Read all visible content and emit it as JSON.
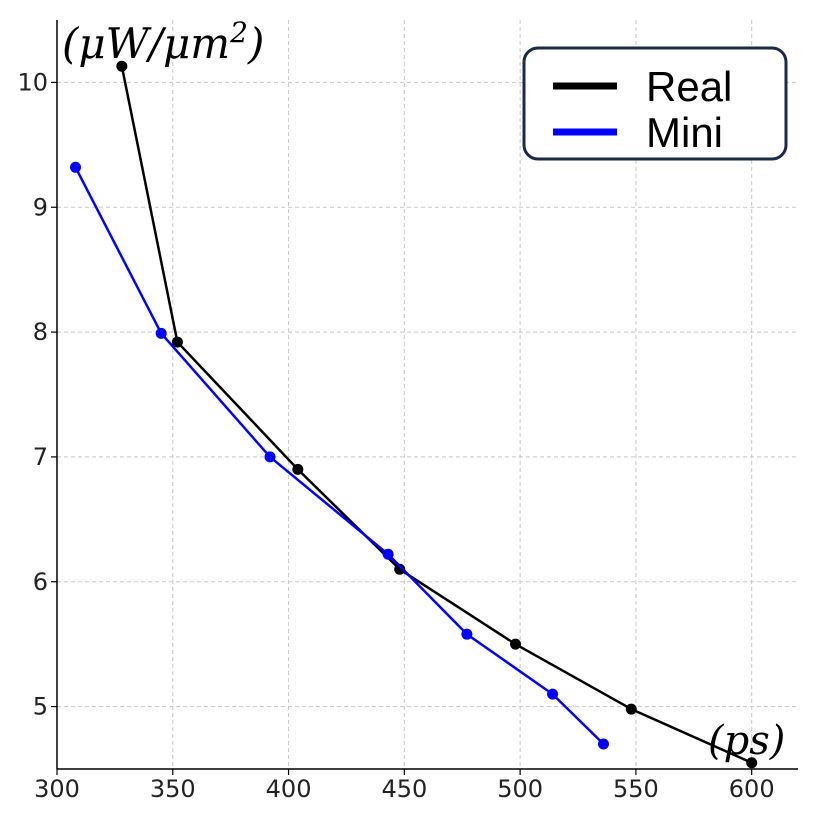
{
  "chart_data": {
    "type": "line",
    "title": "",
    "xlabel": "(ps)",
    "ylabel": "(μW/μm²)",
    "y_unit_text": "(μW/μm",
    "y_unit_sup": "2",
    "y_unit_close": ")",
    "xlim": [
      300,
      620
    ],
    "ylim": [
      4.5,
      10.5
    ],
    "xticks": [
      300,
      350,
      400,
      450,
      500,
      550,
      600
    ],
    "yticks": [
      5,
      6,
      7,
      8,
      9,
      10
    ],
    "grid": true,
    "legend_position": "top-right",
    "series": [
      {
        "name": "Real",
        "color": "#000000",
        "x": [
          328,
          352,
          404,
          448,
          498,
          548,
          600
        ],
        "y": [
          10.13,
          7.92,
          6.9,
          6.1,
          5.5,
          4.98,
          4.55
        ]
      },
      {
        "name": "Mini",
        "color": "#0000ff",
        "x": [
          308,
          345,
          392,
          443,
          477,
          514,
          536
        ],
        "y": [
          9.32,
          7.99,
          7.0,
          6.22,
          5.58,
          5.1,
          4.7
        ]
      }
    ]
  }
}
